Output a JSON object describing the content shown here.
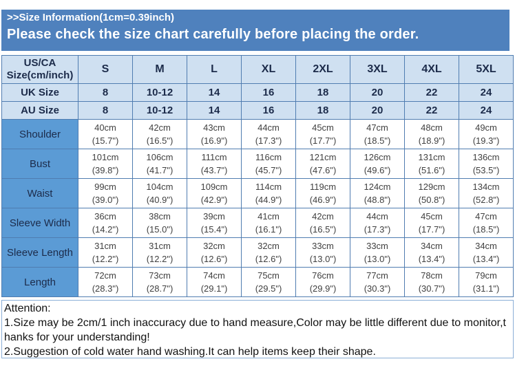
{
  "banner": {
    "title": ">>Size Information(1cm=0.39inch)",
    "subtitle": "Please check the size chart carefully before placing the order."
  },
  "table": {
    "corner_header_lines": [
      "US/CA",
      "Size(cm/inch)"
    ],
    "size_headers": [
      "S",
      "M",
      "L",
      "XL",
      "2XL",
      "3XL",
      "4XL",
      "5XL"
    ],
    "region_rows": [
      {
        "label": "UK Size",
        "values": [
          "8",
          "10-12",
          "14",
          "16",
          "18",
          "20",
          "22",
          "24"
        ]
      },
      {
        "label": "AU Size",
        "values": [
          "8",
          "10-12",
          "14",
          "16",
          "18",
          "20",
          "22",
          "24"
        ]
      }
    ],
    "measure_rows": [
      {
        "label": "Shoulder",
        "values": [
          [
            "40cm",
            "(15.7\")"
          ],
          [
            "42cm",
            "(16.5\")"
          ],
          [
            "43cm",
            "(16.9\")"
          ],
          [
            "44cm",
            "(17.3\")"
          ],
          [
            "45cm",
            "(17.7\")"
          ],
          [
            "47cm",
            "(18.5\")"
          ],
          [
            "48cm",
            "(18.9\")"
          ],
          [
            "49cm",
            "(19.3\")"
          ]
        ]
      },
      {
        "label": "Bust",
        "values": [
          [
            "101cm",
            "(39.8\")"
          ],
          [
            "106cm",
            "(41.7\")"
          ],
          [
            "111cm",
            "(43.7\")"
          ],
          [
            "116cm",
            "(45.7\")"
          ],
          [
            "121cm",
            "(47.6\")"
          ],
          [
            "126cm",
            "(49.6\")"
          ],
          [
            "131cm",
            "(51.6\")"
          ],
          [
            "136cm",
            "(53.5\")"
          ]
        ]
      },
      {
        "label": "Waist",
        "values": [
          [
            "99cm",
            "(39.0\")"
          ],
          [
            "104cm",
            "(40.9\")"
          ],
          [
            "109cm",
            "(42.9\")"
          ],
          [
            "114cm",
            "(44.9\")"
          ],
          [
            "119cm",
            "(46.9\")"
          ],
          [
            "124cm",
            "(48.8\")"
          ],
          [
            "129cm",
            "(50.8\")"
          ],
          [
            "134cm",
            "(52.8\")"
          ]
        ]
      },
      {
        "label": "Sleeve Width",
        "values": [
          [
            "36cm",
            "(14.2\")"
          ],
          [
            "38cm",
            "(15.0\")"
          ],
          [
            "39cm",
            "(15.4\")"
          ],
          [
            "41cm",
            "(16.1\")"
          ],
          [
            "42cm",
            "(16.5\")"
          ],
          [
            "44cm",
            "(17.3\")"
          ],
          [
            "45cm",
            "(17.7\")"
          ],
          [
            "47cm",
            "(18.5\")"
          ]
        ]
      },
      {
        "label": "Sleeve Length",
        "values": [
          [
            "31cm",
            "(12.2\")"
          ],
          [
            "31cm",
            "(12.2\")"
          ],
          [
            "32cm",
            "(12.6\")"
          ],
          [
            "32cm",
            "(12.6\")"
          ],
          [
            "33cm",
            "(13.0\")"
          ],
          [
            "33cm",
            "(13.0\")"
          ],
          [
            "34cm",
            "(13.4\")"
          ],
          [
            "34cm",
            "(13.4\")"
          ]
        ]
      },
      {
        "label": "Length",
        "values": [
          [
            "72cm",
            "(28.3\")"
          ],
          [
            "73cm",
            "(28.7\")"
          ],
          [
            "74cm",
            "(29.1\")"
          ],
          [
            "75cm",
            "(29.5\")"
          ],
          [
            "76cm",
            "(29.9\")"
          ],
          [
            "77cm",
            "(30.3\")"
          ],
          [
            "78cm",
            "(30.7\")"
          ],
          [
            "79cm",
            "(31.1\")"
          ]
        ]
      }
    ]
  },
  "attention": {
    "lines": [
      "Attention:",
      "1.Size may be 2cm/1 inch inaccuracy due to hand measure,Color may be little different due to monitor,t",
      "hanks for your understanding!",
      "2.Suggestion of cold water hand washing.It can help items keep their shape."
    ]
  },
  "colors": {
    "banner_blue": "#4f81bd",
    "light_blue_cell": "#cfe0f1",
    "label_column_blue": "#5b9bd5",
    "grid_border": "#4f7cb0",
    "header_text_navy": "#1c2b4a",
    "value_text_gray": "#404040"
  }
}
